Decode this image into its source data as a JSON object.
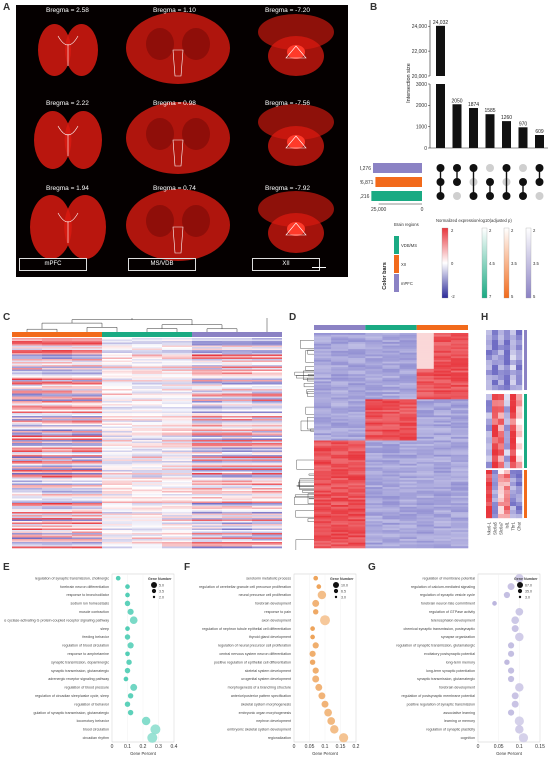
{
  "panel_labels": {
    "a": "A",
    "b": "B",
    "c": "C",
    "d": "D",
    "e": "E",
    "f": "F",
    "g": "G",
    "h": "H"
  },
  "panel_a": {
    "bregma": [
      [
        "Bregma = 2.58",
        "Bregma = 1.10",
        "Bregma = -7.20"
      ],
      [
        "Bregma = 2.22",
        "Bregma = 0.98",
        "Bregma = -7.56"
      ],
      [
        "Bregma = 1.94",
        "Bregma = 0.74",
        "Bregma = -7.92"
      ]
    ],
    "regions": [
      "mPFC",
      "MS/VDB",
      "XII"
    ],
    "tissue_color": "#d91a10"
  },
  "chart_data": [
    {
      "type": "bar",
      "panel": "B",
      "ylabel": "Intersection size",
      "values": [
        24032,
        2050,
        1874,
        1585,
        1260,
        970,
        609
      ],
      "value_labels": [
        "24,032",
        "2050",
        "1874",
        "1585",
        "1260",
        "970",
        "609"
      ],
      "y_ticks": [
        "0",
        "1000",
        "2000",
        "3000",
        "20,000",
        "22,000",
        "24,000"
      ],
      "set_sizes": [
        {
          "label": "28,276",
          "value": 28276,
          "color": "#8b82c4"
        },
        {
          "label": "26,871",
          "value": 26871,
          "color": "#f26a1b"
        },
        {
          "label": "29,216",
          "value": 29216,
          "color": "#1aaa83"
        }
      ],
      "set_axis_labels": [
        "25,000",
        "0"
      ],
      "matrix": [
        [
          1,
          1,
          1,
          0,
          1,
          0,
          1
        ],
        [
          1,
          1,
          0,
          1,
          0,
          1,
          1
        ],
        [
          1,
          0,
          1,
          1,
          1,
          1,
          0
        ]
      ]
    },
    {
      "type": "scatter",
      "panel": "E",
      "xlabel": "Gene Percent",
      "x_ticks": [
        "0",
        "0.1",
        "0.2",
        "0.3",
        "0.4"
      ],
      "xlim": [
        0,
        0.4
      ],
      "terms": [
        {
          "label": "regulation of synaptic transmission, cholinergic",
          "x": 0.04,
          "n": 3
        },
        {
          "label": "forebrain neuron differentiation",
          "x": 0.1,
          "n": 3
        },
        {
          "label": "response to bronchodilator",
          "x": 0.1,
          "n": 3
        },
        {
          "label": "sodium ion homeostasis",
          "x": 0.1,
          "n": 4
        },
        {
          "label": "muscle contraction",
          "x": 0.12,
          "n": 5
        },
        {
          "label": "adenylate cyclase-activating G protein-coupled receptor signaling pathway",
          "x": 0.14,
          "n": 7
        },
        {
          "label": "sleep",
          "x": 0.1,
          "n": 3
        },
        {
          "label": "feeding behavior",
          "x": 0.1,
          "n": 4
        },
        {
          "label": "regulation of blood circulation",
          "x": 0.12,
          "n": 5
        },
        {
          "label": "response to amphetamine",
          "x": 0.1,
          "n": 3
        },
        {
          "label": "synaptic transmission, dopaminergic",
          "x": 0.11,
          "n": 4
        },
        {
          "label": "synaptic transmission, glutamatergic",
          "x": 0.1,
          "n": 4
        },
        {
          "label": "adrenergic receptor signaling pathway",
          "x": 0.09,
          "n": 3
        },
        {
          "label": "regulation of blood pressure",
          "x": 0.14,
          "n": 6
        },
        {
          "label": "regulation of circadian sleep/wake cycle, sleep",
          "x": 0.12,
          "n": 4
        },
        {
          "label": "regulation of behavior",
          "x": 0.1,
          "n": 4
        },
        {
          "label": "gulation of synaptic transmission, glutamatergic",
          "x": 0.12,
          "n": 4
        },
        {
          "label": "locomotory behavior",
          "x": 0.22,
          "n": 8
        },
        {
          "label": "blood circulation",
          "x": 0.28,
          "n": 10
        },
        {
          "label": "circadian rhythm",
          "x": 0.26,
          "n": 10
        }
      ],
      "legend_title": "Gene Number",
      "legend_values": [
        "5.0",
        "3.5",
        "2.0"
      ],
      "color_low": "#d8f5ef",
      "color_high": "#1fbfa0"
    },
    {
      "type": "scatter",
      "panel": "F",
      "xlabel": "Gene Percent",
      "x_ticks": [
        "0",
        "0.05",
        "0.1",
        "0.15",
        "0.2"
      ],
      "xlim": [
        0,
        0.2
      ],
      "terms": [
        {
          "label": "serotonin metabolic process",
          "x": 0.07,
          "n": 3
        },
        {
          "label": "regulation of cerebellar granule cell precursor proliferation",
          "x": 0.08,
          "n": 3
        },
        {
          "label": "neural precursor cell proliferation",
          "x": 0.09,
          "n": 8
        },
        {
          "label": "forebrain development",
          "x": 0.07,
          "n": 6
        },
        {
          "label": "response to pain",
          "x": 0.07,
          "n": 4
        },
        {
          "label": "axon development",
          "x": 0.1,
          "n": 10
        },
        {
          "label": "regulation of nephron tubule epithelial cell differentiation",
          "x": 0.06,
          "n": 3
        },
        {
          "label": "thyroid gland development",
          "x": 0.06,
          "n": 3
        },
        {
          "label": "regulation of neural precursor cell proliferation",
          "x": 0.07,
          "n": 5
        },
        {
          "label": "central nervous system neuron differentiation",
          "x": 0.06,
          "n": 5
        },
        {
          "label": "positive regulation of epithelial cell differentiation",
          "x": 0.06,
          "n": 4
        },
        {
          "label": "skeletal system development",
          "x": 0.07,
          "n": 5
        },
        {
          "label": "urogenital system development",
          "x": 0.07,
          "n": 6
        },
        {
          "label": "morphogenesis of a branching structure",
          "x": 0.08,
          "n": 6
        },
        {
          "label": "anterior/posterior pattern specification",
          "x": 0.09,
          "n": 6
        },
        {
          "label": "skeletal system morphogenesis",
          "x": 0.1,
          "n": 6
        },
        {
          "label": "embryonic organ morphogenesis",
          "x": 0.11,
          "n": 7
        },
        {
          "label": "nephron development",
          "x": 0.12,
          "n": 7
        },
        {
          "label": "embryonic skeletal system development",
          "x": 0.13,
          "n": 8
        },
        {
          "label": "regionalization",
          "x": 0.16,
          "n": 9
        }
      ],
      "legend_title": "Gene Number",
      "legend_values": [
        "10.0",
        "6.5",
        "3.0"
      ],
      "color_low": "#fde8d4",
      "color_high": "#e8892b"
    },
    {
      "type": "scatter",
      "panel": "G",
      "xlabel": "Gene Percent",
      "x_ticks": [
        "0",
        "0.05",
        "0.1",
        "0.15"
      ],
      "xlim": [
        0,
        0.15
      ],
      "terms": [
        {
          "label": "regulation of membrane potential",
          "x": 0.1,
          "n": 8
        },
        {
          "label": "regulation of calcium-mediated signaling",
          "x": 0.08,
          "n": 6
        },
        {
          "label": "regulation of synaptic vesicle cycle",
          "x": 0.07,
          "n": 5
        },
        {
          "label": "forebrain neuron fate commitment",
          "x": 0.04,
          "n": 3
        },
        {
          "label": "regulation of GTPase activity",
          "x": 0.1,
          "n": 7
        },
        {
          "label": "telencephalon development",
          "x": 0.09,
          "n": 7
        },
        {
          "label": "chemical synaptic transmission, postsynaptic",
          "x": 0.09,
          "n": 6
        },
        {
          "label": "synapse organization",
          "x": 0.1,
          "n": 8
        },
        {
          "label": "regulation of synaptic transmission, glutamatergic",
          "x": 0.08,
          "n": 5
        },
        {
          "label": "excitatory postsynaptic potential",
          "x": 0.08,
          "n": 5
        },
        {
          "label": "long-term memory",
          "x": 0.07,
          "n": 4
        },
        {
          "label": "long-term synaptic potentiation",
          "x": 0.08,
          "n": 5
        },
        {
          "label": "synaptic transmission, glutamatergic",
          "x": 0.08,
          "n": 5
        },
        {
          "label": "forebrain development",
          "x": 0.1,
          "n": 8
        },
        {
          "label": "regulation of postsynaptic membrane potential",
          "x": 0.09,
          "n": 6
        },
        {
          "label": "positive regulation of synaptic transmission",
          "x": 0.09,
          "n": 6
        },
        {
          "label": "associative learning",
          "x": 0.08,
          "n": 5
        },
        {
          "label": "learning or memory",
          "x": 0.1,
          "n": 9
        },
        {
          "label": "regulation of synaptic plasticity",
          "x": 0.1,
          "n": 8
        },
        {
          "label": "cognition",
          "x": 0.11,
          "n": 9
        }
      ],
      "legend_title": "Gene Number",
      "legend_values": [
        "67.0",
        "35.0",
        "3.0"
      ],
      "color_low": "#eceaf6",
      "color_high": "#a79fd3"
    }
  ],
  "color_bars": {
    "title": "Color bars",
    "brain_regions_title": "Brain regions",
    "regions": [
      {
        "label": "VDB/MS",
        "color": "#1aaa83"
      },
      {
        "label": "XII",
        "color": "#f26a1b"
      },
      {
        "label": "mPFC",
        "color": "#8b82c4"
      }
    ],
    "norm_title": "Normalized expression",
    "norm_ticks": [
      "2",
      "0",
      "-2"
    ],
    "padj_title": "-log10(adjusted p)",
    "padj_scales": [
      {
        "ticks": [
          "2",
          "4.5",
          "7"
        ],
        "color": "#1aaa83"
      },
      {
        "ticks": [
          "2",
          "3.5",
          "5"
        ],
        "color": "#f26a1b"
      },
      {
        "ticks": [
          "2",
          "3.5",
          "5"
        ],
        "color": "#8b82c4"
      }
    ]
  },
  "panel_h": {
    "genes": [
      "Nkx6-1",
      "Slc6a5",
      "Slc6a7",
      "Isl1",
      "Tbr1",
      "Chat"
    ]
  },
  "heat_colors": {
    "low": "#6f6cc4",
    "mid": "#ffffff",
    "high": "#e8353c"
  },
  "group_colors": [
    "#f26a1b",
    "#1aaa83",
    "#8b82c4"
  ]
}
